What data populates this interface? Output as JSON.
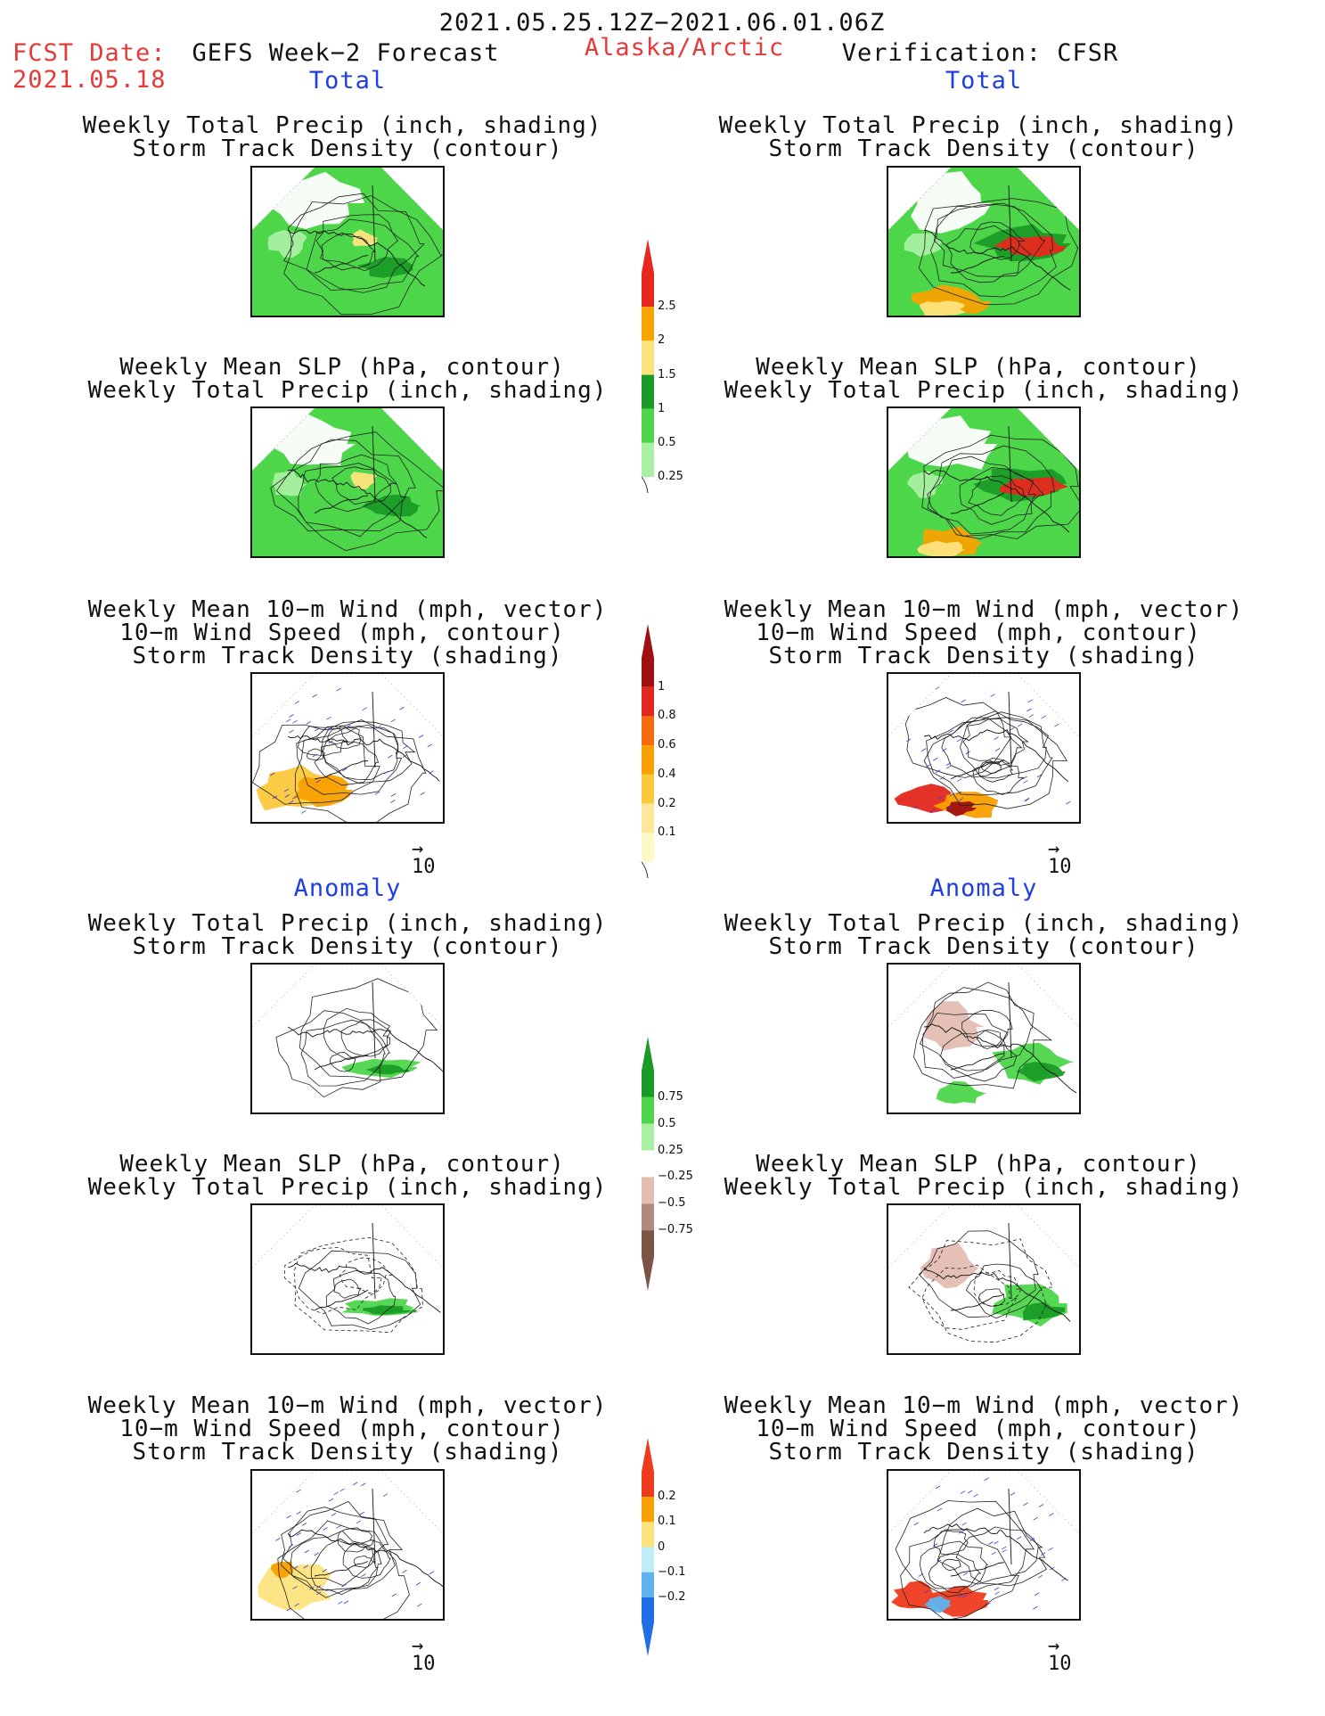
{
  "header": {
    "period": "2021.05.25.12Z−2021.06.01.06Z",
    "fcst_label": "FCST Date:",
    "fcst_date": "2021.05.18",
    "forecast_title": "GEFS Week−2 Forecast",
    "region": "Alaska/Arctic",
    "verification": "Verification: CFSR"
  },
  "sections": {
    "total": "Total",
    "anomaly": "Anomaly"
  },
  "panel_titles": {
    "precip_track_1": "Weekly Total Precip (inch, shading)",
    "precip_track_2": "Storm Track Density (contour)",
    "slp_precip_1": "Weekly Mean SLP (hPa, contour)",
    "slp_precip_2": "Weekly Total Precip (inch, shading)",
    "wind_1": "Weekly Mean 10−m Wind (mph, vector)",
    "wind_2": "10−m Wind Speed (mph, contour)",
    "wind_3": "Storm Track Density (shading)"
  },
  "vector_reference": "10",
  "colorbars": {
    "precip_total": {
      "labels": [
        "2.5",
        "2",
        "1.5",
        "1",
        "0.5",
        "0.25"
      ],
      "colors": [
        "#e8281e",
        "#f7a300",
        "#fde37d",
        "#1a9b27",
        "#4ed64b",
        "#a9f0a2"
      ]
    },
    "storm_total": {
      "labels": [
        "1",
        "0.8",
        "0.6",
        "0.4",
        "0.2",
        "0.1"
      ],
      "colors": [
        "#a01010",
        "#e2281e",
        "#f66a10",
        "#f8a000",
        "#fcc83c",
        "#fde89a",
        "#fff9c8"
      ]
    },
    "precip_anom": {
      "labels": [
        "0.75",
        "0.5",
        "0.25",
        "−0.25",
        "−0.5",
        "−0.75"
      ],
      "colors": [
        "#1a9b27",
        "#4ed64b",
        "#a9f0a2",
        "#ffffff",
        "#e3bdb2",
        "#b08b7d",
        "#7b5446"
      ]
    },
    "storm_anom": {
      "labels": [
        "0.2",
        "0.1",
        "0",
        "−0.1",
        "−0.2"
      ],
      "colors": [
        "#ef3b1d",
        "#f8a000",
        "#fde37d",
        "#bfeef7",
        "#5fb4f0",
        "#1f6ee5"
      ]
    }
  }
}
